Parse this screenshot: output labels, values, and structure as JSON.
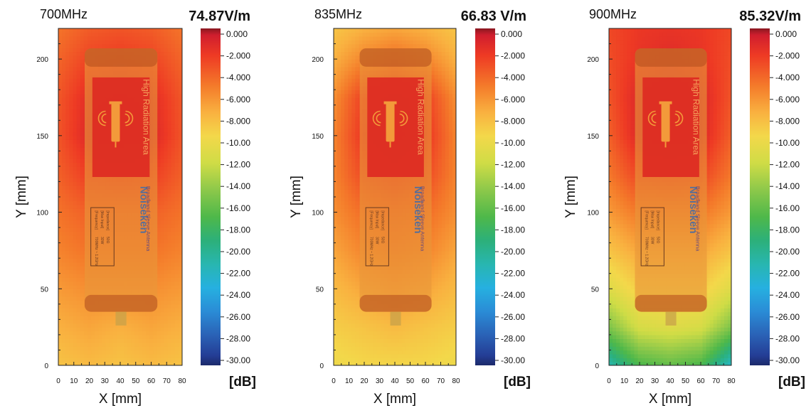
{
  "chart_data": [
    {
      "type": "heatmap",
      "title": "700MHz",
      "max_field": "74.87V/m",
      "xlabel": "X [mm]",
      "ylabel": "Y [mm]",
      "xlim": [
        0,
        80
      ],
      "ylim": [
        0,
        220
      ],
      "x_ticks": [
        0,
        10,
        20,
        30,
        40,
        50,
        60,
        70,
        80
      ],
      "y_ticks": [
        0,
        50,
        100,
        150,
        200
      ],
      "colorbar_label": "[dB]",
      "colorbar_ticks": [
        "0.000",
        "-2.000",
        "-4.000",
        "-6.000",
        "-8.000",
        "-10.00",
        "-12.00",
        "-14.00",
        "-16.00",
        "-18.00",
        "-20.00",
        "-22.00",
        "-24.00",
        "-26.00",
        "-28.00",
        "-30.00"
      ],
      "colorbar_range_db": [
        -30,
        0
      ],
      "x": [
        0,
        20,
        40,
        60,
        80
      ],
      "y": [
        0,
        25,
        50,
        75,
        100,
        125,
        150,
        175,
        200,
        220
      ],
      "z_db": [
        [
          -8.5,
          -8.0,
          -8.5,
          -8.0,
          -8.5
        ],
        [
          -7.5,
          -7.0,
          -7.5,
          -7.0,
          -7.5
        ],
        [
          -6.5,
          -6.0,
          -6.0,
          -6.0,
          -6.5
        ],
        [
          -5.5,
          -4.8,
          -4.8,
          -4.8,
          -5.5
        ],
        [
          -4.8,
          -4.0,
          -4.0,
          -4.0,
          -4.8
        ],
        [
          -4.0,
          -2.5,
          -2.2,
          -2.5,
          -4.0
        ],
        [
          -3.5,
          -1.2,
          -1.0,
          -1.2,
          -3.5
        ],
        [
          -3.6,
          -1.5,
          -1.2,
          -1.5,
          -3.6
        ],
        [
          -4.2,
          -2.8,
          -2.4,
          -2.8,
          -4.2
        ],
        [
          -4.8,
          -3.8,
          -3.5,
          -3.8,
          -4.8
        ]
      ]
    },
    {
      "type": "heatmap",
      "title": "835MHz",
      "max_field": "66.83 V/m",
      "xlabel": "X [mm]",
      "ylabel": "Y [mm]",
      "xlim": [
        0,
        80
      ],
      "ylim": [
        0,
        220
      ],
      "x_ticks": [
        0,
        10,
        20,
        30,
        40,
        50,
        60,
        70,
        80
      ],
      "y_ticks": [
        0,
        50,
        100,
        150,
        200
      ],
      "colorbar_label": "[dB]",
      "colorbar_ticks": [
        "0.000",
        "-2.000",
        "-4.000",
        "-6.000",
        "-8.000",
        "-10.00",
        "-12.00",
        "-14.00",
        "-16.00",
        "-18.00",
        "-20.00",
        "-22.00",
        "-24.00",
        "-26.00",
        "-28.00",
        "-30.00"
      ],
      "colorbar_range_db": [
        -30,
        0
      ],
      "x": [
        0,
        20,
        40,
        60,
        80
      ],
      "y": [
        0,
        25,
        50,
        75,
        100,
        125,
        150,
        175,
        200,
        220
      ],
      "z_db": [
        [
          -10.0,
          -9.5,
          -9.5,
          -9.5,
          -10.0
        ],
        [
          -9.0,
          -8.5,
          -8.0,
          -8.5,
          -9.0
        ],
        [
          -8.0,
          -7.0,
          -6.5,
          -7.0,
          -8.0
        ],
        [
          -7.0,
          -5.5,
          -5.0,
          -5.5,
          -7.0
        ],
        [
          -6.0,
          -4.5,
          -4.0,
          -4.5,
          -6.0
        ],
        [
          -5.5,
          -3.0,
          -2.2,
          -3.0,
          -5.5
        ],
        [
          -5.5,
          -2.0,
          -1.0,
          -2.0,
          -5.5
        ],
        [
          -6.0,
          -2.5,
          -1.5,
          -2.5,
          -6.0
        ],
        [
          -7.5,
          -5.5,
          -4.5,
          -5.5,
          -7.5
        ],
        [
          -8.5,
          -7.5,
          -7.0,
          -7.5,
          -8.5
        ]
      ]
    },
    {
      "type": "heatmap",
      "title": "900MHz",
      "max_field": "85.32V/m",
      "xlabel": "X [mm]",
      "ylabel": "Y [mm]",
      "xlim": [
        0,
        80
      ],
      "ylim": [
        0,
        220
      ],
      "x_ticks": [
        0,
        10,
        20,
        30,
        40,
        50,
        60,
        70,
        80
      ],
      "y_ticks": [
        0,
        50,
        100,
        150,
        200
      ],
      "colorbar_label": "[dB]",
      "colorbar_ticks": [
        "0.000",
        "-2.000",
        "-4.000",
        "-6.000",
        "-8.000",
        "-10.00",
        "-12.00",
        "-14.00",
        "-16.00",
        "-18.00",
        "-20.00",
        "-22.00",
        "-24.00",
        "-26.00",
        "-28.00",
        "-30.00"
      ],
      "colorbar_range_db": [
        -30,
        0
      ],
      "x": [
        0,
        20,
        40,
        60,
        80
      ],
      "y": [
        0,
        25,
        50,
        75,
        100,
        125,
        150,
        175,
        200,
        220
      ],
      "z_db": [
        [
          -21.0,
          -17.0,
          -16.0,
          -17.0,
          -22.0
        ],
        [
          -15.0,
          -11.5,
          -11.0,
          -11.5,
          -15.0
        ],
        [
          -11.0,
          -9.0,
          -9.0,
          -9.0,
          -11.0
        ],
        [
          -8.5,
          -7.0,
          -7.0,
          -7.0,
          -8.5
        ],
        [
          -6.5,
          -5.0,
          -5.0,
          -5.0,
          -6.5
        ],
        [
          -5.0,
          -2.8,
          -2.5,
          -2.8,
          -5.0
        ],
        [
          -4.0,
          -1.2,
          -1.0,
          -1.2,
          -4.0
        ],
        [
          -3.5,
          -1.2,
          -1.0,
          -1.2,
          -3.5
        ],
        [
          -3.2,
          -2.0,
          -1.5,
          -2.0,
          -3.2
        ],
        [
          -3.0,
          -2.2,
          -2.0,
          -2.2,
          -3.0
        ]
      ]
    }
  ],
  "device_label": {
    "warning_text": "High Radiation Area",
    "brand": "Noiseken",
    "product": "Broadband Sleeve Antenna",
    "spec_keys": [
      "[Frequency]",
      "[Max Input]",
      "[Impedance]"
    ],
    "spec_values": [
      "700MHz ~ 1.2GHz",
      "30W",
      "50Ω"
    ]
  },
  "colors": {
    "device_overlay": "#e8983a",
    "device_end_caps": "#b8501e",
    "warning_panel": "#dd2a22",
    "warning_text": "#f6a35c",
    "antenna_icon": "#f39a3a",
    "brand_text": "#5a6f97",
    "connector": "#c8a24a"
  }
}
